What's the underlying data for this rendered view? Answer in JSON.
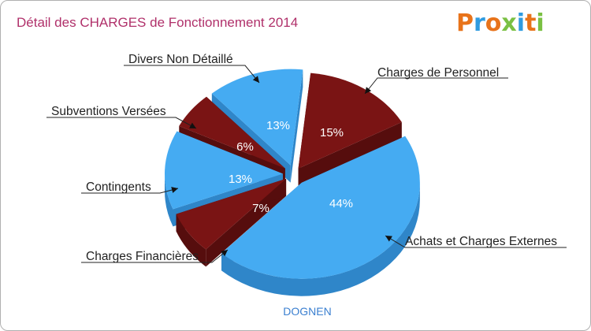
{
  "chart_data": {
    "type": "pie",
    "title": "Détail des CHARGES de Fonctionnement 2014",
    "subtitle": "DOGNEN",
    "brand": "Proxiti",
    "slices": [
      {
        "label": "Charges de Personnel",
        "value": 15,
        "value_label": "15%",
        "color": "#7a1414",
        "side": "#560d0d"
      },
      {
        "label": "Achats et Charges Externes",
        "value": 44,
        "value_label": "44%",
        "color": "#45abf2",
        "side": "#2f86c9"
      },
      {
        "label": "Charges Financières",
        "value": 7,
        "value_label": "7%",
        "color": "#7a1414",
        "side": "#560d0d"
      },
      {
        "label": "Contingents",
        "value": 13,
        "value_label": "13%",
        "color": "#45abf2",
        "side": "#2f86c9"
      },
      {
        "label": "Subventions Versées",
        "value": 6,
        "value_label": "6%",
        "color": "#7a1414",
        "side": "#560d0d"
      },
      {
        "label": "Divers Non Détaillé",
        "value": 13,
        "value_label": "13%",
        "color": "#45abf2",
        "side": "#2f86c9"
      }
    ],
    "colors": {
      "title": "#b0306a",
      "subtitle": "#3a7fd0",
      "pct_on_dark": "#ffffff",
      "pct_on_light": "#ffffff"
    }
  }
}
